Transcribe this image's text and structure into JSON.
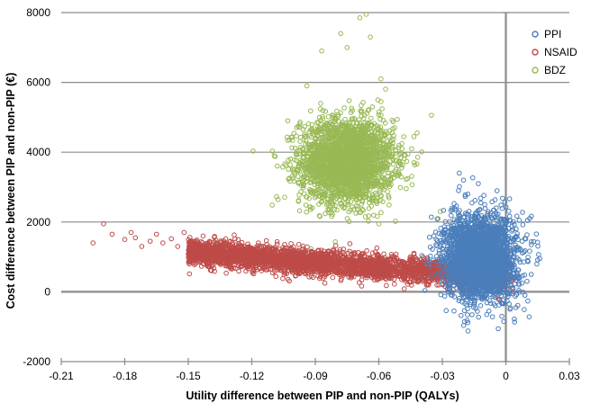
{
  "chart_data": {
    "type": "scatter",
    "title": "",
    "xlabel": "Utility difference between PIP and non-PIP (QALYs)",
    "ylabel": "Cost difference between PIP and non-PIP (€)",
    "xlim": [
      -0.21,
      0.03
    ],
    "ylim": [
      -2000,
      8000
    ],
    "x_ticks": [
      "-0.21",
      "-0.18",
      "-0.15",
      "-0.12",
      "-0.09",
      "-0.06",
      "-0.03",
      "0",
      "0.03"
    ],
    "y_ticks": [
      "-2000",
      "0",
      "2000",
      "4000",
      "6000",
      "8000"
    ],
    "grid": "horizontal",
    "legend_position": "top-right",
    "marker": "open-circle",
    "series": [
      {
        "name": "PPI",
        "color": "#4a7ebb",
        "distribution": {
          "mean_x": -0.012,
          "sd_x": 0.0085,
          "mean_y": 1000,
          "sd_y": 600
        },
        "points": [
          [
            -0.022,
            3400
          ],
          [
            -0.02,
            3200
          ],
          [
            -0.013,
            3100
          ],
          [
            -0.034,
            1600
          ],
          [
            -0.028,
            1400
          ],
          [
            0.012,
            500
          ],
          [
            0.009,
            -100
          ],
          [
            -0.009,
            -650
          ],
          [
            -0.001,
            -850
          ],
          [
            0.004,
            -780
          ],
          [
            0.002,
            -500
          ],
          [
            -0.005,
            -400
          ],
          [
            0.01,
            300
          ],
          [
            -0.018,
            2800
          ],
          [
            -0.01,
            2500
          ],
          [
            0.007,
            1200
          ]
        ]
      },
      {
        "name": "NSAID",
        "color": "#be4b48",
        "distribution": {
          "slope": 5000,
          "intercept": 400,
          "x_range": [
            -0.15,
            0.005
          ],
          "sd_y": 180
        },
        "points": [
          [
            -0.19,
            1950
          ],
          [
            -0.195,
            1400
          ],
          [
            -0.186,
            1650
          ],
          [
            -0.18,
            1500
          ],
          [
            -0.177,
            1700
          ],
          [
            -0.175,
            1550
          ],
          [
            -0.172,
            1300
          ],
          [
            -0.168,
            1450
          ],
          [
            -0.165,
            1650
          ],
          [
            -0.162,
            1400
          ],
          [
            -0.158,
            1520
          ],
          [
            -0.155,
            1300
          ],
          [
            -0.152,
            1700
          ],
          [
            -0.149,
            1450
          ],
          [
            -0.146,
            1350
          ],
          [
            -0.143,
            1600
          ],
          [
            -0.14,
            1280
          ],
          [
            -0.137,
            1480
          ]
        ]
      },
      {
        "name": "BDZ",
        "color": "#98b954",
        "distribution": {
          "mean_x": -0.075,
          "sd_x": 0.011,
          "mean_y": 3750,
          "sd_y": 600
        },
        "points": [
          [
            -0.066,
            7950
          ],
          [
            -0.069,
            7850
          ],
          [
            -0.078,
            7400
          ],
          [
            -0.075,
            7000
          ],
          [
            -0.087,
            6900
          ],
          [
            -0.064,
            7300
          ],
          [
            -0.059,
            6100
          ],
          [
            -0.094,
            5900
          ],
          [
            -0.103,
            4900
          ],
          [
            -0.098,
            3600
          ],
          [
            -0.026,
            1700
          ],
          [
            -0.031,
            2300
          ],
          [
            -0.032,
            2100
          ],
          [
            -0.059,
            5450
          ]
        ]
      }
    ]
  }
}
